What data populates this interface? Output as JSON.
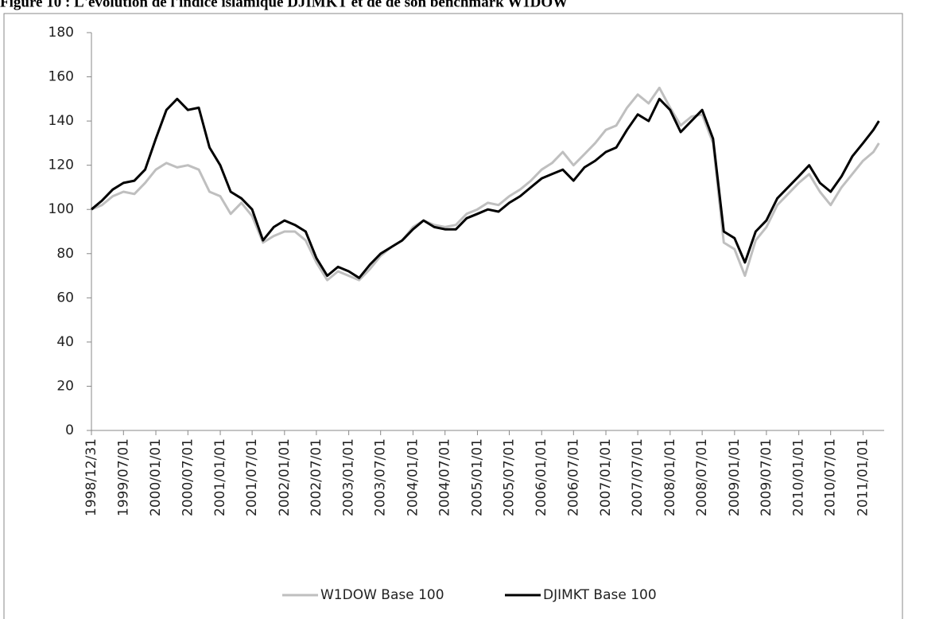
{
  "chart_data": {
    "type": "line",
    "title": "Figure 10 : L'évolution de l'indice islamique DJIMKT et de de son benchmark W1DOW",
    "x": [
      "1998/12/31",
      "1999/03/01",
      "1999/05/01",
      "1999/07/01",
      "1999/09/01",
      "1999/11/01",
      "2000/01/01",
      "2000/03/01",
      "2000/05/01",
      "2000/07/01",
      "2000/09/01",
      "2000/11/01",
      "2001/01/01",
      "2001/03/01",
      "2001/05/01",
      "2001/07/01",
      "2001/09/01",
      "2001/11/01",
      "2002/01/01",
      "2002/03/01",
      "2002/05/01",
      "2002/07/01",
      "2002/09/01",
      "2002/11/01",
      "2003/01/01",
      "2003/03/01",
      "2003/05/01",
      "2003/07/01",
      "2003/09/01",
      "2003/11/01",
      "2004/01/01",
      "2004/03/01",
      "2004/05/01",
      "2004/07/01",
      "2004/09/01",
      "2004/11/01",
      "2005/01/01",
      "2005/03/01",
      "2005/05/01",
      "2005/07/01",
      "2005/09/01",
      "2005/11/01",
      "2006/01/01",
      "2006/03/01",
      "2006/05/01",
      "2006/07/01",
      "2006/09/01",
      "2006/11/01",
      "2007/01/01",
      "2007/03/01",
      "2007/05/01",
      "2007/07/01",
      "2007/09/01",
      "2007/11/01",
      "2008/01/01",
      "2008/03/01",
      "2008/05/01",
      "2008/07/01",
      "2008/09/01",
      "2008/11/01",
      "2009/01/01",
      "2009/03/01",
      "2009/05/01",
      "2009/07/01",
      "2009/09/01",
      "2009/11/01",
      "2010/01/01",
      "2010/03/01",
      "2010/05/01",
      "2010/07/01",
      "2010/09/01",
      "2010/11/01",
      "2011/01/01",
      "2011/03/01",
      "2011/04/01"
    ],
    "series": [
      {
        "name": "W1DOW Base 100",
        "color": "#bfbfbf",
        "values": [
          100,
          102,
          106,
          108,
          107,
          112,
          118,
          121,
          119,
          120,
          118,
          108,
          106,
          98,
          103,
          97,
          85,
          88,
          90,
          90,
          86,
          76,
          68,
          72,
          70,
          68,
          73,
          79,
          83,
          86,
          92,
          95,
          93,
          92,
          93,
          98,
          100,
          103,
          102,
          106,
          109,
          113,
          118,
          121,
          126,
          120,
          125,
          130,
          136,
          138,
          146,
          152,
          148,
          155,
          146,
          138,
          142,
          143,
          130,
          85,
          82,
          70,
          86,
          92,
          102,
          107,
          112,
          116,
          108,
          102,
          110,
          116,
          122,
          126,
          130
        ]
      },
      {
        "name": "DJIMKT Base 100",
        "color": "#000000",
        "values": [
          100,
          104,
          109,
          112,
          113,
          118,
          132,
          145,
          150,
          145,
          146,
          128,
          120,
          108,
          105,
          100,
          86,
          92,
          95,
          93,
          90,
          78,
          70,
          74,
          72,
          69,
          75,
          80,
          83,
          86,
          91,
          95,
          92,
          91,
          91,
          96,
          98,
          100,
          99,
          103,
          106,
          110,
          114,
          116,
          118,
          113,
          119,
          122,
          126,
          128,
          136,
          143,
          140,
          150,
          145,
          135,
          140,
          145,
          132,
          90,
          87,
          76,
          90,
          95,
          105,
          110,
          115,
          120,
          112,
          108,
          115,
          124,
          130,
          136,
          140
        ]
      }
    ],
    "xlim": [
      "1998/12/31",
      "2011/05/01"
    ],
    "xticks": [
      "1998/12/31",
      "1999/07/01",
      "2000/01/01",
      "2000/07/01",
      "2001/01/01",
      "2001/07/01",
      "2002/01/01",
      "2002/07/01",
      "2003/01/01",
      "2003/07/01",
      "2004/01/01",
      "2004/07/01",
      "2005/01/01",
      "2005/07/01",
      "2006/01/01",
      "2006/07/01",
      "2007/01/01",
      "2007/07/01",
      "2008/01/01",
      "2008/07/01",
      "2009/01/01",
      "2009/07/01",
      "2010/01/01",
      "2010/07/01",
      "2011/01/01"
    ],
    "ylim": [
      0,
      180
    ],
    "yticks": [
      0,
      20,
      40,
      60,
      80,
      100,
      120,
      140,
      160,
      180
    ],
    "grid": false,
    "legend": "bottom"
  }
}
